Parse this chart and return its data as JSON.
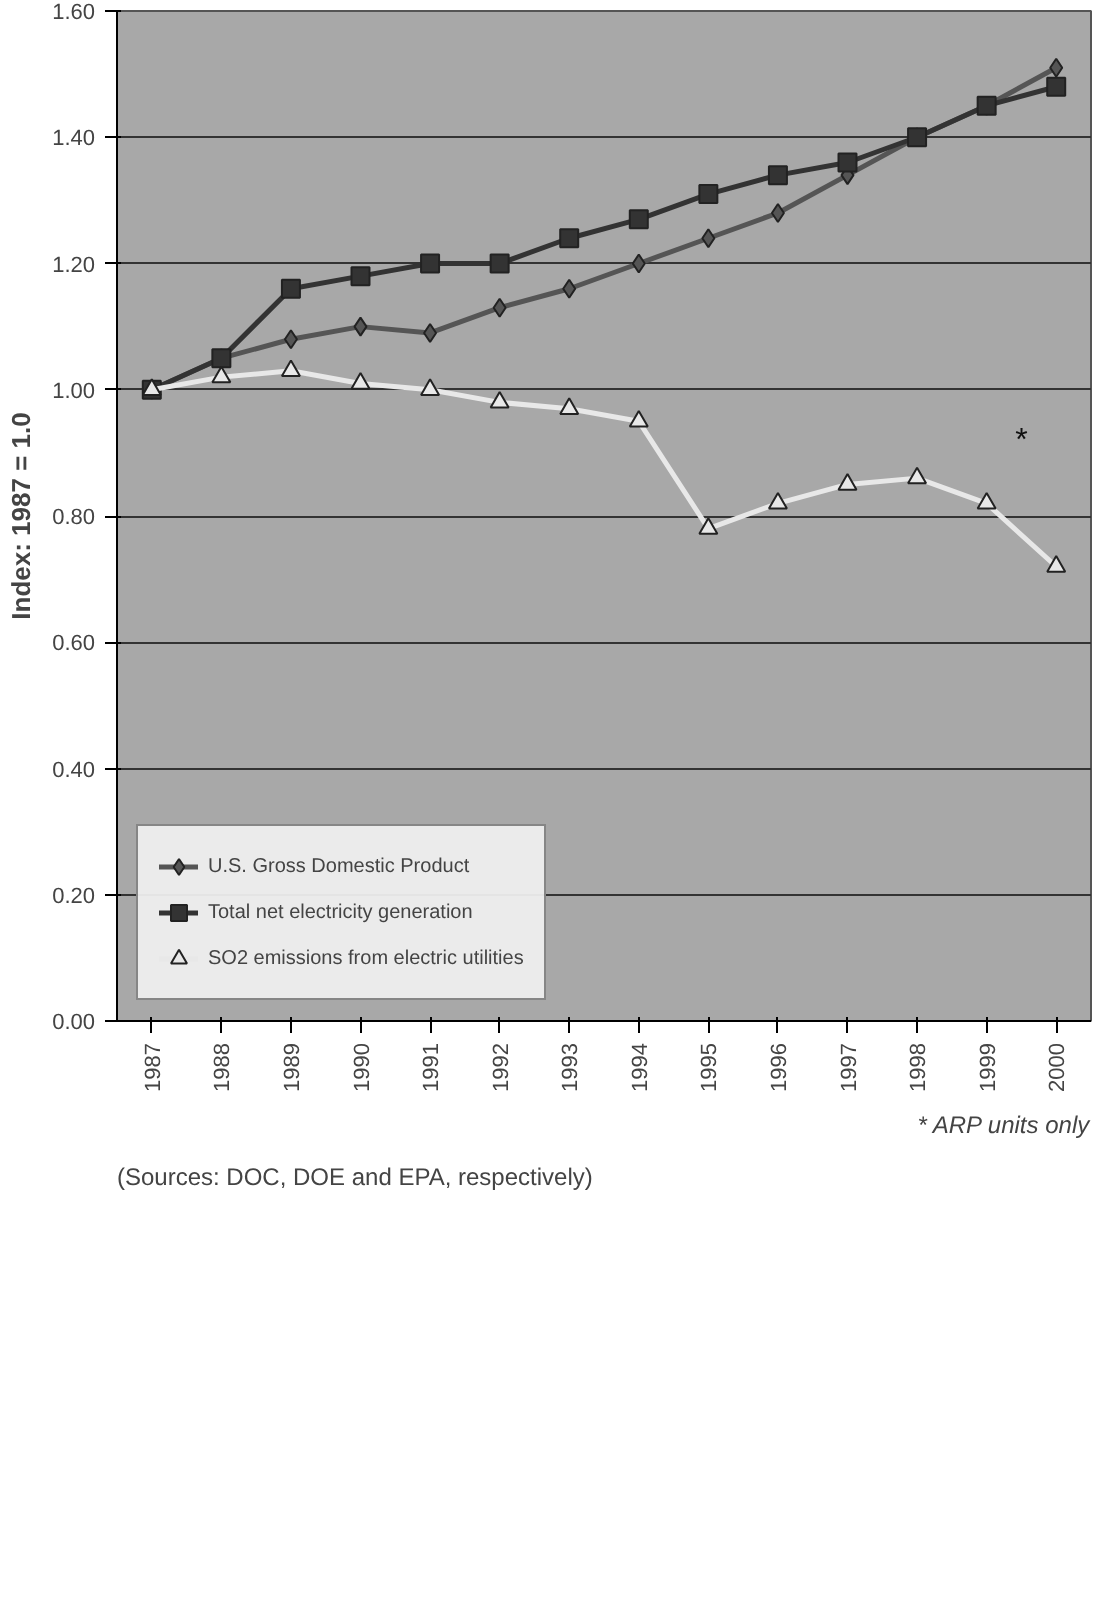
{
  "chart_data": {
    "type": "line",
    "ylabel": "Index: 1987 = 1.0",
    "categories": [
      "1987",
      "1988",
      "1989",
      "1990",
      "1991",
      "1992",
      "1993",
      "1994",
      "1995",
      "1996",
      "1997",
      "1998",
      "1999",
      "2000"
    ],
    "series": [
      {
        "name": "U.S. Gross Domestic Product",
        "color": "#555555",
        "marker": "diamond",
        "values": [
          1.0,
          1.05,
          1.08,
          1.1,
          1.09,
          1.13,
          1.16,
          1.2,
          1.24,
          1.28,
          1.34,
          1.4,
          1.45,
          1.51
        ]
      },
      {
        "name": "Total net electricity generation",
        "color": "#333333",
        "marker": "square",
        "values": [
          1.0,
          1.05,
          1.16,
          1.18,
          1.2,
          1.2,
          1.24,
          1.27,
          1.31,
          1.34,
          1.36,
          1.4,
          1.45,
          1.48
        ]
      },
      {
        "name": "SO2 emissions from electric utilities",
        "color": "#e8e8e8",
        "marker": "triangle",
        "values": [
          1.0,
          1.02,
          1.03,
          1.01,
          1.0,
          0.98,
          0.97,
          0.95,
          0.78,
          0.82,
          0.85,
          0.86,
          0.82,
          0.72
        ]
      }
    ],
    "ylim": [
      0,
      1.6
    ],
    "yticks": [
      {
        "value": 0,
        "label": "0.00"
      },
      {
        "value": 0.2,
        "label": "0.20"
      },
      {
        "value": 0.4,
        "label": "0.40"
      },
      {
        "value": 0.6,
        "label": "0.60"
      },
      {
        "value": 0.8,
        "label": "0.80"
      },
      {
        "value": 1,
        "label": "1.00"
      },
      {
        "value": 1.2,
        "label": "1.20"
      },
      {
        "value": 1.4,
        "label": "1.40"
      },
      {
        "value": 1.6,
        "label": "1.60"
      }
    ],
    "grid": "y",
    "legend": "bottom left",
    "annotations": [
      "*",
      "* ARP units only",
      "(Sources: DOC, DOE and EPA, respectively)"
    ]
  }
}
